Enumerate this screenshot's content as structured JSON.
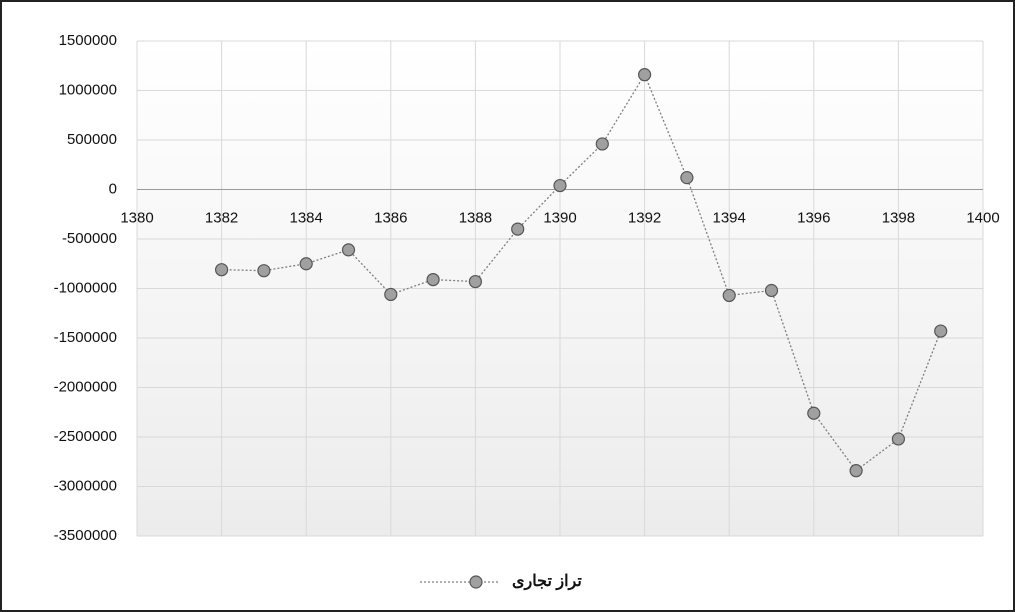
{
  "chart_data": {
    "type": "line",
    "x": [
      1382,
      1383,
      1384,
      1385,
      1386,
      1387,
      1388,
      1389,
      1390,
      1391,
      1392,
      1393,
      1394,
      1395,
      1396,
      1397,
      1398,
      1399
    ],
    "series": [
      {
        "name": "تراز تجاری",
        "color": "#a0a0a0",
        "values": [
          -810000,
          -820000,
          -750000,
          -610000,
          -1060000,
          -910000,
          -930000,
          -400000,
          40000,
          460000,
          1160000,
          120000,
          -1070000,
          -1020000,
          -2260000,
          -2840000,
          -2520000,
          -1430000
        ]
      }
    ],
    "xlim": [
      1380,
      1400
    ],
    "xticks": [
      1380,
      1382,
      1384,
      1386,
      1388,
      1390,
      1392,
      1394,
      1396,
      1398,
      1400
    ],
    "ylim": [
      -3500000,
      1500000
    ],
    "yticks": [
      -3500000,
      -3000000,
      -2500000,
      -2000000,
      -1500000,
      -1000000,
      -500000,
      0,
      500000,
      1000000,
      1500000
    ],
    "grid": true,
    "legend": "bottom"
  }
}
